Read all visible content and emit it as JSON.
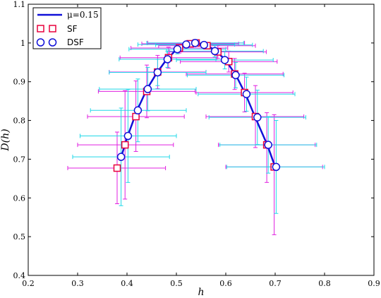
{
  "chart_data": {
    "type": "scatter",
    "xlabel": "h",
    "ylabel": "D(h)",
    "xlim": [
      0.2,
      0.9
    ],
    "ylim": [
      0.4,
      1.1
    ],
    "xticks": [
      "0.2",
      "0.3",
      "0.4",
      "0.5",
      "0.6",
      "0.7",
      "0.8",
      "0.9"
    ],
    "yticks": [
      "0.4",
      "0.5",
      "0.6",
      "0.7",
      "0.8",
      "0.9",
      "1",
      "1.1"
    ],
    "legend_position": "top-left",
    "series": [
      {
        "name": "μ=0.15",
        "kind": "line",
        "color": "#1010d8",
        "x": [
          0.388,
          0.4,
          0.42,
          0.44,
          0.46,
          0.48,
          0.5,
          0.52,
          0.538,
          0.56,
          0.58,
          0.6,
          0.62,
          0.64,
          0.66,
          0.684,
          0.7
        ],
        "y": [
          0.705,
          0.755,
          0.825,
          0.88,
          0.922,
          0.957,
          0.983,
          0.996,
          1.0,
          0.995,
          0.98,
          0.955,
          0.918,
          0.868,
          0.807,
          0.737,
          0.68
        ]
      },
      {
        "name": "SF",
        "kind": "marker",
        "marker": "square",
        "color": "#e8003c",
        "errcolor": "#e020e0",
        "points": [
          {
            "x": 0.38,
            "y": 0.677,
            "xerr": [
              0.28,
              0.478
            ],
            "yerr": [
              0.585,
              0.77
            ]
          },
          {
            "x": 0.396,
            "y": 0.737,
            "xerr": [
              0.3,
              0.494
            ],
            "yerr": [
              0.597,
              0.877
            ]
          },
          {
            "x": 0.418,
            "y": 0.81,
            "xerr": [
              0.32,
              0.516
            ],
            "yerr": [
              0.72,
              0.902
            ]
          },
          {
            "x": 0.44,
            "y": 0.875,
            "xerr": [
              0.342,
              0.538
            ],
            "yerr": [
              0.807,
              0.943
            ]
          },
          {
            "x": 0.462,
            "y": 0.925,
            "xerr": [
              0.364,
              0.56
            ],
            "yerr": [
              0.882,
              0.968
            ]
          },
          {
            "x": 0.484,
            "y": 0.962,
            "xerr": [
              0.386,
              0.582
            ],
            "yerr": [
              0.935,
              0.989
            ]
          },
          {
            "x": 0.506,
            "y": 0.987,
            "xerr": [
              0.408,
              0.604
            ],
            "yerr": [
              0.974,
              1.0
            ]
          },
          {
            "x": 0.528,
            "y": 0.998,
            "xerr": [
              0.43,
              0.626
            ],
            "yerr": [
              0.993,
              1.003
            ]
          },
          {
            "x": 0.54,
            "y": 1.0,
            "xerr": [
              0.442,
              0.638
            ],
            "yerr": [
              0.997,
              1.003
            ]
          },
          {
            "x": 0.562,
            "y": 0.993,
            "xerr": [
              0.464,
              0.66
            ],
            "yerr": [
              0.985,
              1.001
            ]
          },
          {
            "x": 0.584,
            "y": 0.977,
            "xerr": [
              0.486,
              0.682
            ],
            "yerr": [
              0.96,
              0.994
            ]
          },
          {
            "x": 0.606,
            "y": 0.952,
            "xerr": [
              0.508,
              0.704
            ],
            "yerr": [
              0.925,
              0.979
            ]
          },
          {
            "x": 0.618,
            "y": 0.92,
            "xerr": [
              0.52,
              0.716
            ],
            "yerr": [
              0.88,
              0.96
            ]
          },
          {
            "x": 0.638,
            "y": 0.872,
            "xerr": [
              0.54,
              0.736
            ],
            "yerr": [
              0.822,
              0.922
            ]
          },
          {
            "x": 0.66,
            "y": 0.81,
            "xerr": [
              0.56,
              0.758
            ],
            "yerr": [
              0.73,
              0.89
            ]
          },
          {
            "x": 0.683,
            "y": 0.737,
            "xerr": [
              0.585,
              0.781
            ],
            "yerr": [
              0.64,
              0.82
            ]
          },
          {
            "x": 0.698,
            "y": 0.68,
            "xerr": [
              0.6,
              0.796
            ],
            "yerr": [
              0.505,
              0.815
            ]
          }
        ]
      },
      {
        "name": "DSF",
        "kind": "marker",
        "marker": "circle",
        "color": "#1010d8",
        "errcolor": "#20d8e8",
        "points": [
          {
            "x": 0.388,
            "y": 0.706,
            "xerr": [
              0.29,
              0.486
            ],
            "yerr": [
              0.58,
              0.832
            ]
          },
          {
            "x": 0.402,
            "y": 0.76,
            "xerr": [
              0.305,
              0.5
            ],
            "yerr": [
              0.64,
              0.88
            ]
          },
          {
            "x": 0.422,
            "y": 0.826,
            "xerr": [
              0.326,
              0.52
            ],
            "yerr": [
              0.745,
              0.907
            ]
          },
          {
            "x": 0.442,
            "y": 0.881,
            "xerr": [
              0.344,
              0.54
            ],
            "yerr": [
              0.825,
              0.937
            ]
          },
          {
            "x": 0.462,
            "y": 0.924,
            "xerr": [
              0.364,
              0.56
            ],
            "yerr": [
              0.89,
              0.958
            ]
          },
          {
            "x": 0.482,
            "y": 0.958,
            "xerr": [
              0.384,
              0.58
            ],
            "yerr": [
              0.937,
              0.979
            ]
          },
          {
            "x": 0.502,
            "y": 0.984,
            "xerr": [
              0.404,
              0.6
            ],
            "yerr": [
              0.972,
              0.996
            ]
          },
          {
            "x": 0.52,
            "y": 0.996,
            "xerr": [
              0.422,
              0.618
            ],
            "yerr": [
              0.99,
              1.002
            ]
          },
          {
            "x": 0.538,
            "y": 1.0,
            "xerr": [
              0.44,
              0.636
            ],
            "yerr": [
              0.996,
              1.003
            ]
          },
          {
            "x": 0.556,
            "y": 0.995,
            "xerr": [
              0.458,
              0.654
            ],
            "yerr": [
              0.988,
              1.002
            ]
          },
          {
            "x": 0.578,
            "y": 0.979,
            "xerr": [
              0.48,
              0.676
            ],
            "yerr": [
              0.964,
              0.994
            ]
          },
          {
            "x": 0.598,
            "y": 0.956,
            "xerr": [
              0.5,
              0.696
            ],
            "yerr": [
              0.933,
              0.979
            ]
          },
          {
            "x": 0.62,
            "y": 0.917,
            "xerr": [
              0.522,
              0.718
            ],
            "yerr": [
              0.884,
              0.95
            ]
          },
          {
            "x": 0.642,
            "y": 0.868,
            "xerr": [
              0.544,
              0.74
            ],
            "yerr": [
              0.824,
              0.912
            ]
          },
          {
            "x": 0.664,
            "y": 0.808,
            "xerr": [
              0.566,
              0.762
            ],
            "yerr": [
              0.738,
              0.878
            ]
          },
          {
            "x": 0.686,
            "y": 0.737,
            "xerr": [
              0.588,
              0.784
            ],
            "yerr": [
              0.664,
              0.81
            ]
          },
          {
            "x": 0.702,
            "y": 0.68,
            "xerr": [
              0.602,
              0.8
            ],
            "yerr": [
              0.56,
              0.8
            ]
          }
        ]
      }
    ]
  }
}
